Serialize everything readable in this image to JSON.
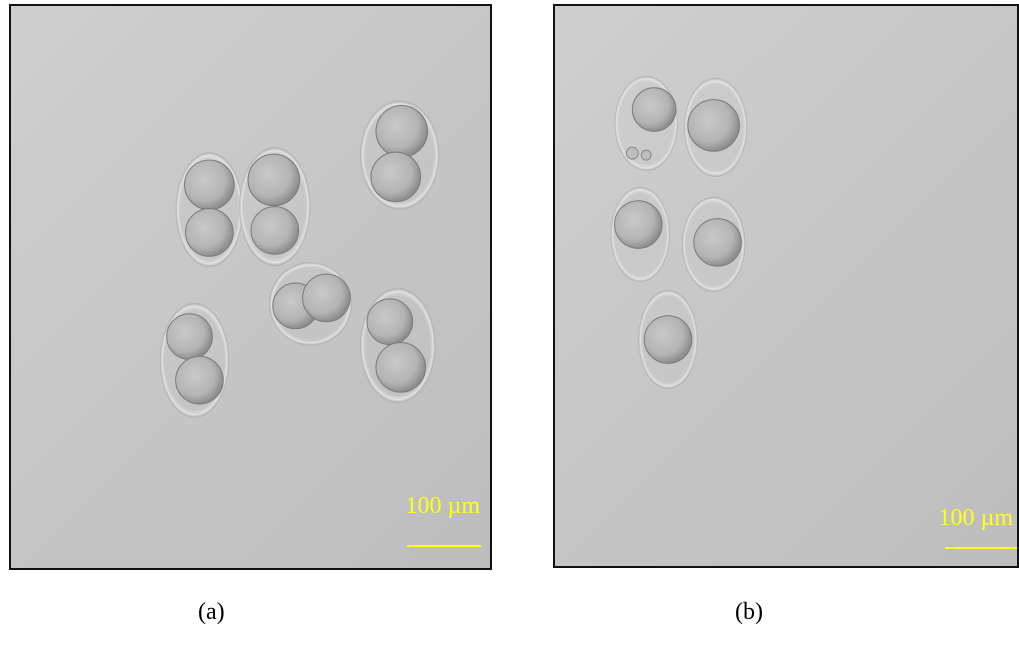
{
  "panels": [
    {
      "id": "a",
      "caption": "(a)",
      "scale_label": "100 µm",
      "scale_color": "#ffff1a"
    },
    {
      "id": "b",
      "caption": "(b)",
      "scale_label": "100 µm",
      "scale_color": "#ffff1a"
    }
  ]
}
